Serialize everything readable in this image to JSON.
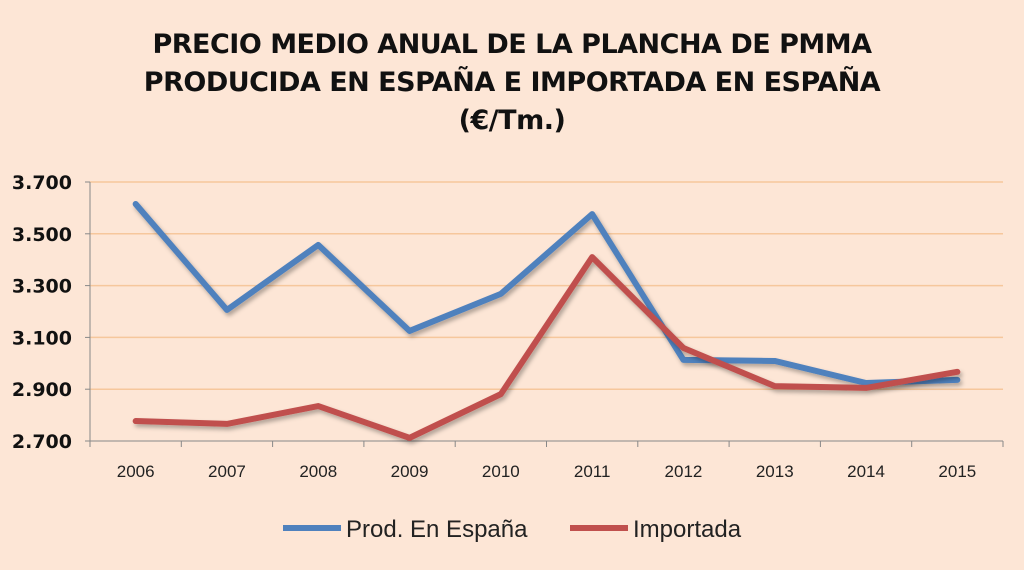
{
  "chart_data": {
    "type": "line",
    "title": [
      "PRECIO MEDIO ANUAL DE LA PLANCHA DE PMMA",
      "PRODUCIDA EN ESPAÑA E IMPORTADA EN ESPAÑA",
      "(€/Tm.)"
    ],
    "xlabel": "",
    "ylabel": "",
    "categories": [
      "2006",
      "2007",
      "2008",
      "2009",
      "2010",
      "2011",
      "2012",
      "2013",
      "2014",
      "2015"
    ],
    "ylim": [
      2700,
      3700
    ],
    "yticks": [
      2700,
      2900,
      3100,
      3300,
      3500,
      3700
    ],
    "ytick_labels": [
      "2.700",
      "2.900",
      "3.100",
      "3.300",
      "3.500",
      "3.700"
    ],
    "grid": true,
    "legend_position": "bottom",
    "series": [
      {
        "name": "Prod. En España",
        "color": "#4f81bd",
        "values": [
          3615,
          3206,
          3457,
          3125,
          3268,
          3576,
          3013,
          3009,
          2924,
          2936
        ]
      },
      {
        "name": "Importada",
        "color": "#c0504d",
        "values": [
          2777,
          2766,
          2835,
          2712,
          2881,
          3410,
          3059,
          2912,
          2905,
          2967
        ]
      }
    ]
  }
}
